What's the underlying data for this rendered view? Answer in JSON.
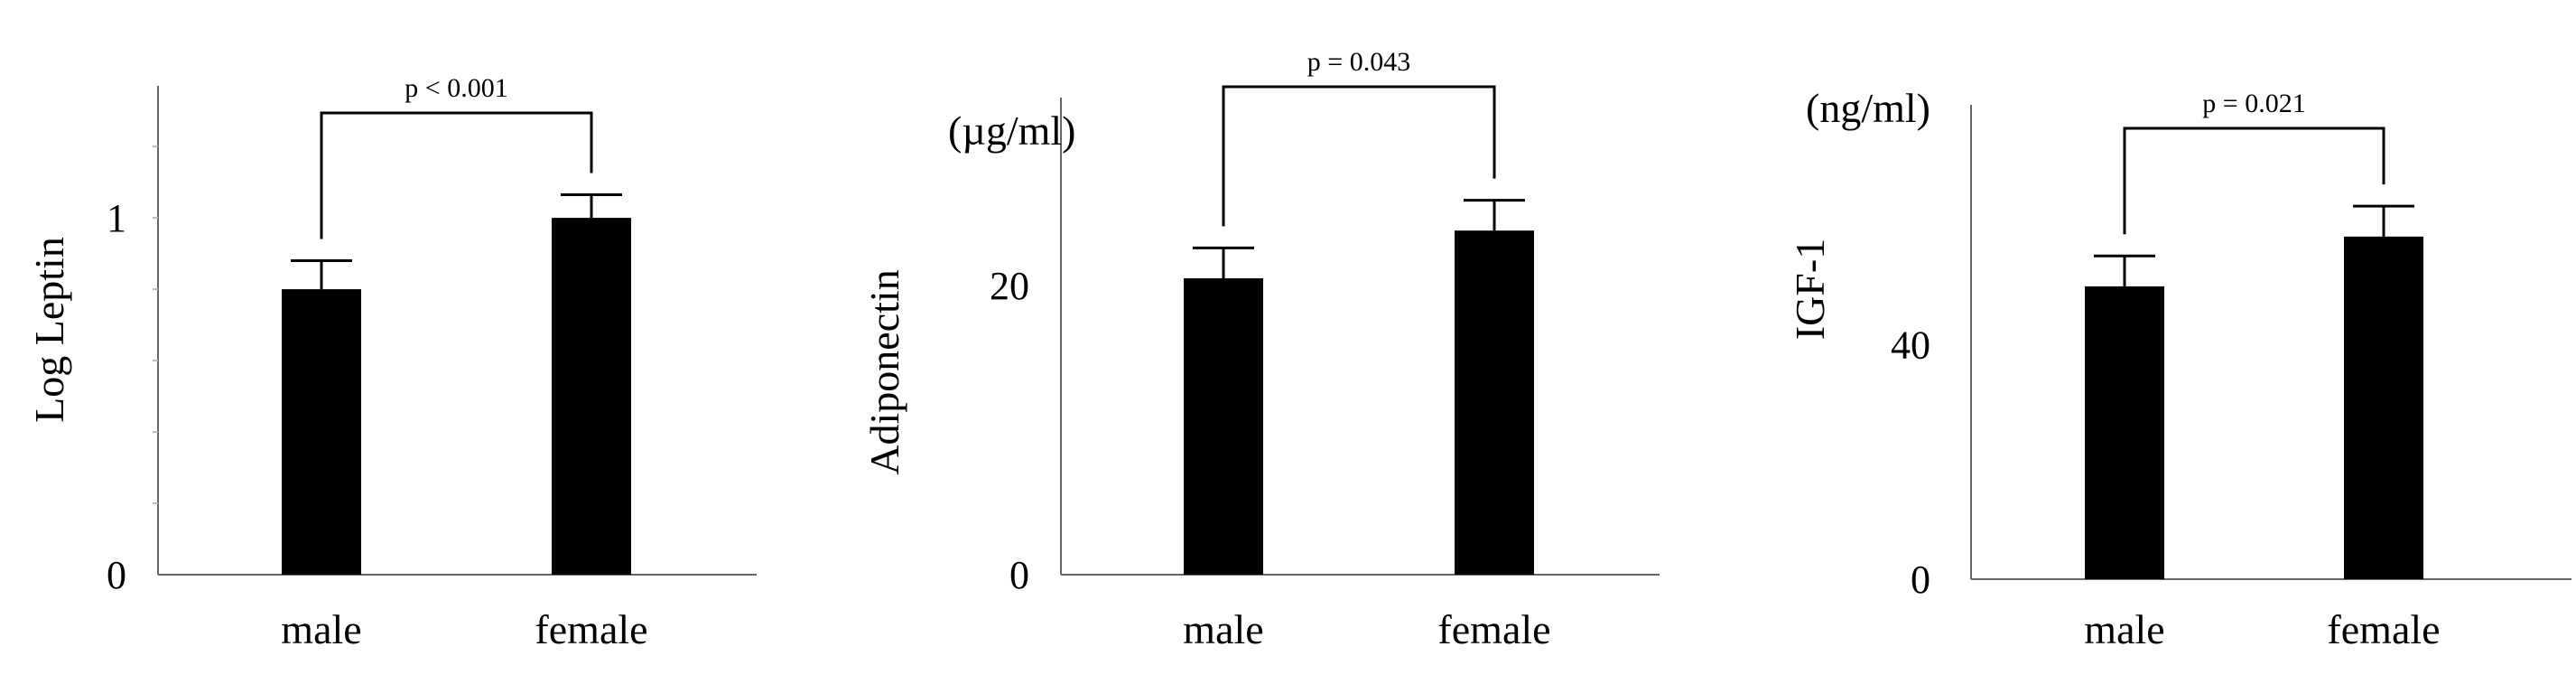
{
  "chart_data": [
    {
      "type": "bar",
      "categories": [
        "male",
        "female"
      ],
      "values": [
        0.8,
        1.0
      ],
      "errors": [
        0.08,
        0.065
      ],
      "ylabel": "Log Leptin",
      "unit": "",
      "ylim": [
        0,
        1.37
      ],
      "yticks": [
        0,
        1
      ],
      "ytick_labels": [
        "0",
        "1"
      ],
      "annotation": "p < 0.001",
      "color": "#000000"
    },
    {
      "type": "bar",
      "categories": [
        "male",
        "female"
      ],
      "values": [
        20.5,
        23.8
      ],
      "errors": [
        2.1,
        2.1
      ],
      "ylabel": "Adiponectin",
      "unit": "(µg/ml)",
      "ylim": [
        0,
        33
      ],
      "yticks": [
        0,
        20
      ],
      "ytick_labels": [
        "0",
        "20"
      ],
      "annotation": "p = 0.043",
      "color": "#000000"
    },
    {
      "type": "bar",
      "categories": [
        "male",
        "female"
      ],
      "values": [
        50,
        58.5
      ],
      "errors": [
        5.2,
        5.2
      ],
      "ylabel": "IGF-1",
      "unit": "(ng/ml)",
      "ylim": [
        0,
        81
      ],
      "yticks": [
        0,
        40
      ],
      "ytick_labels": [
        "0",
        "40"
      ],
      "annotation": "p = 0.021",
      "color": "#000000"
    }
  ]
}
